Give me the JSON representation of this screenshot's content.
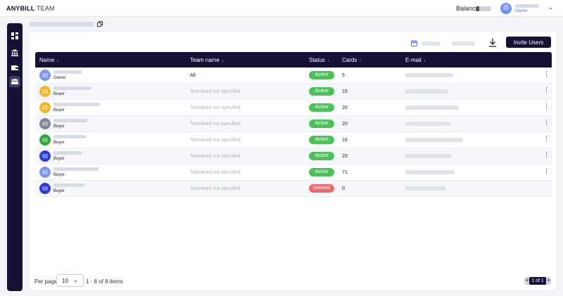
{
  "brand": {
    "bold": "ANYBILL",
    "light": "TEAM"
  },
  "header": {
    "balance_label": "Balance:",
    "user_role": "Owner",
    "chevron": "⌄"
  },
  "sidebar": {
    "items": [
      "dashboard-icon",
      "bank-icon",
      "wallet-icon",
      "team-icon"
    ],
    "active": "team-icon"
  },
  "toolbar": {
    "invite_label": "Invite Users",
    "calendar_icon": "calendar-icon",
    "download_icon": "download-icon"
  },
  "table": {
    "columns": [
      "Name",
      "Team name",
      "Status",
      "Cards",
      "E-mail"
    ],
    "sort_glyph": "↕",
    "rows": [
      {
        "role": "Owner",
        "team": "All",
        "status": "Active",
        "cards": "5",
        "avatar_color": "#7b97f0"
      },
      {
        "role": "Buyer",
        "team": "Teamlead not specified",
        "status": "Active",
        "cards": "15",
        "avatar_color": "#f2b52b"
      },
      {
        "role": "Buyer",
        "team": "Teamlead not specified",
        "status": "Active",
        "cards": "20",
        "avatar_color": "#f2b52b"
      },
      {
        "role": "Buyer",
        "team": "Teamlead not specified",
        "status": "Active",
        "cards": "20",
        "avatar_color": "#7c8694"
      },
      {
        "role": "Buyer",
        "team": "Teamlead not specified",
        "status": "Active",
        "cards": "16",
        "avatar_color": "#2fa53a"
      },
      {
        "role": "Buyer",
        "team": "Teamlead not specified",
        "status": "Active",
        "cards": "20",
        "avatar_color": "#2f3bd9"
      },
      {
        "role": "Buyer",
        "team": "Teamlead not specified",
        "status": "Active",
        "cards": "71",
        "avatar_color": "#7b97f0"
      },
      {
        "role": "Buyer",
        "team": "Teamlead not specified",
        "status": "Deleted",
        "cards": "0",
        "avatar_color": "#2f3bd9"
      }
    ]
  },
  "footer": {
    "per_page_label": "Per page",
    "per_page_value": "10",
    "chevron": "⌄",
    "items_label": "1 - 8 of 8 items",
    "page_label": "1 of 1",
    "prev": "◀",
    "next": "▶"
  },
  "colors": {
    "navy": "#151236",
    "active": "#4cc15a",
    "deleted": "#f0676b",
    "accent": "#4e6cf5"
  }
}
